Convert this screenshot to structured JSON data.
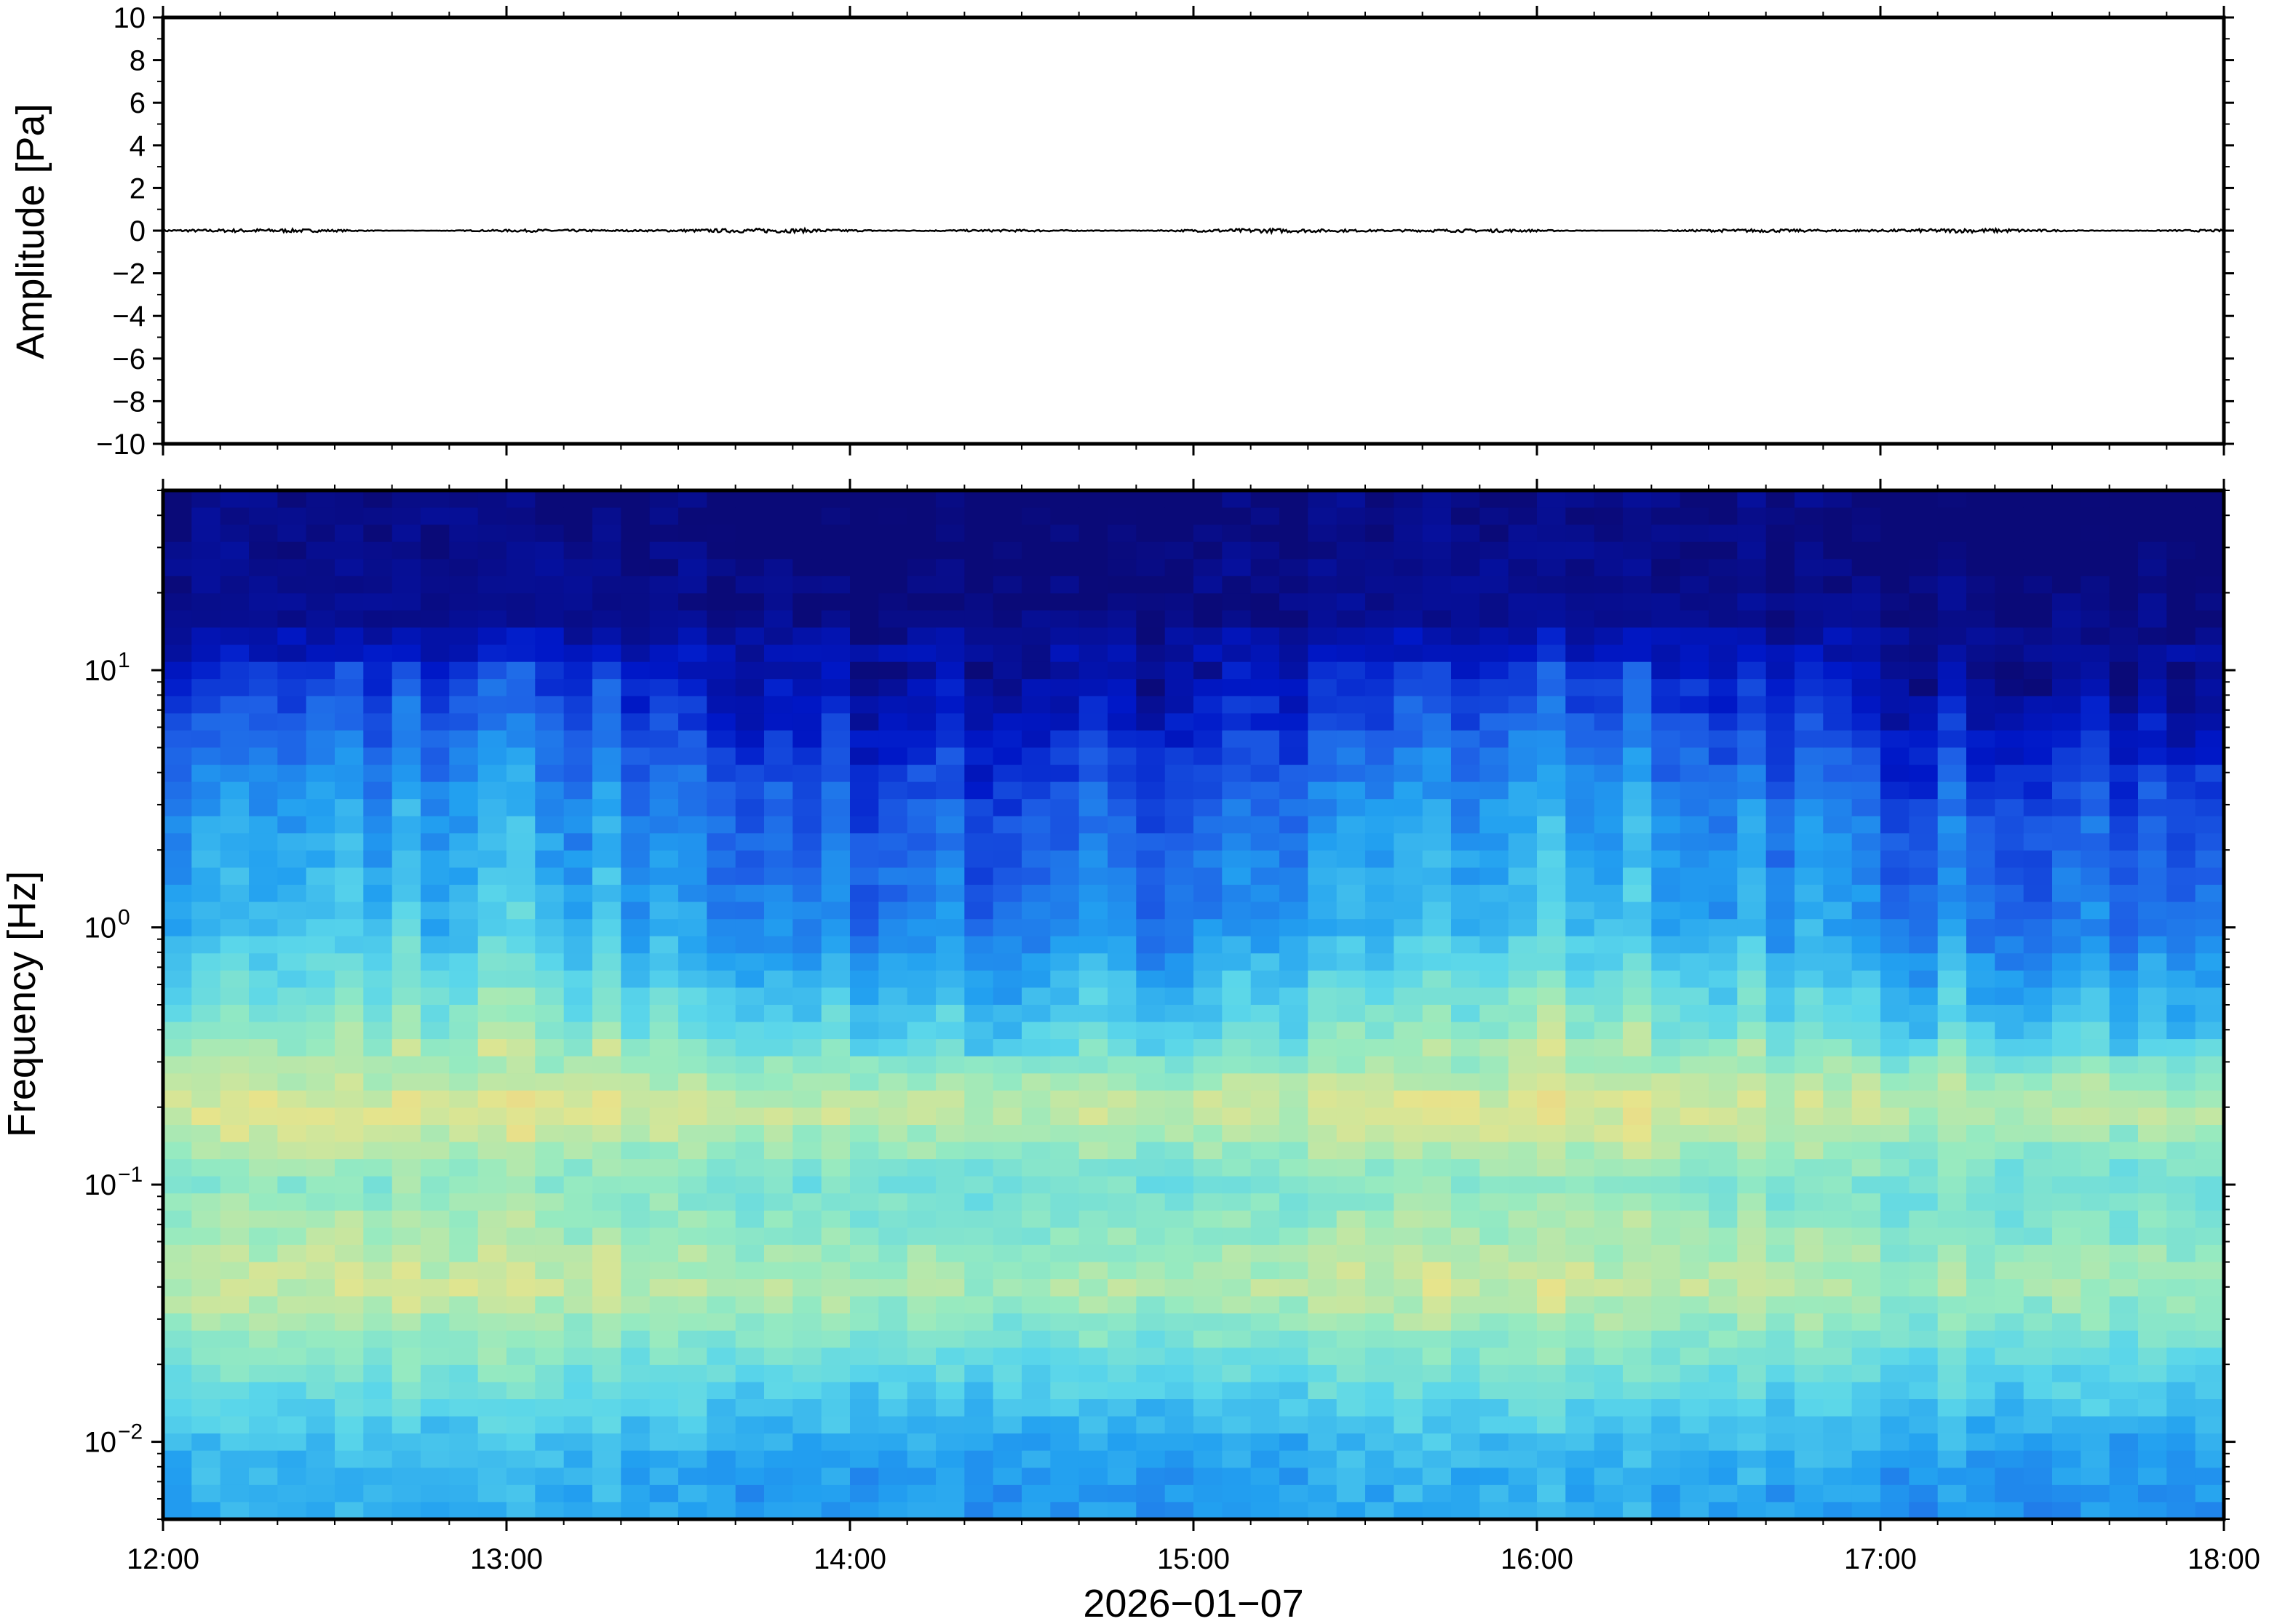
{
  "chart_data": [
    {
      "type": "line",
      "panel": "waveform",
      "ylabel": "Amplitude [Pa]",
      "ylim": [
        -10,
        10
      ],
      "yticks": [
        "10",
        "8",
        "6",
        "4",
        "2",
        "0",
        "−2",
        "−4",
        "−6",
        "−8",
        "−10"
      ],
      "ytick_values": [
        10,
        8,
        6,
        4,
        2,
        0,
        -2,
        -4,
        -6,
        -8,
        -10
      ],
      "series": [
        {
          "values": [
            0.03,
            -0.02,
            0.05,
            -0.04,
            0.02,
            -0.01,
            0.04,
            -0.03,
            0.06,
            -0.05,
            0.02,
            0.0
          ]
        }
      ],
      "trace_color": "#000000"
    },
    {
      "type": "heatmap",
      "panel": "spectrogram",
      "ylabel": "Frequency [Hz]",
      "yscale": "log",
      "ylim": [
        0.005,
        50
      ],
      "yticks": [
        {
          "base": "10",
          "exp": "1",
          "value": 10
        },
        {
          "base": "10",
          "exp": "0",
          "value": 1
        },
        {
          "base": "10",
          "exp": "−1",
          "value": 0.1
        },
        {
          "base": "10",
          "exp": "−2",
          "value": 0.01
        }
      ],
      "x": [
        "12:00",
        "13:00",
        "14:00",
        "15:00",
        "16:00",
        "17:00",
        "18:00"
      ],
      "xlabel": "2026−01−07",
      "colormap": [
        "#0a0a78",
        "#0018c8",
        "#1e60e6",
        "#22a0f0",
        "#5ad6ea",
        "#96eac0",
        "#e6e48c",
        "#f4c27c",
        "#f2a050"
      ],
      "energy_rows": [
        {
          "freq": 40,
          "level": 0.0
        },
        {
          "freq": 15,
          "level": 0.05
        },
        {
          "freq": 8,
          "level": 0.15
        },
        {
          "freq": 3,
          "level": 0.3
        },
        {
          "freq": 1,
          "level": 0.38
        },
        {
          "freq": 0.4,
          "level": 0.55
        },
        {
          "freq": 0.2,
          "level": 0.72
        },
        {
          "freq": 0.1,
          "level": 0.58
        },
        {
          "freq": 0.04,
          "level": 0.68
        },
        {
          "freq": 0.02,
          "level": 0.55
        },
        {
          "freq": 0.01,
          "level": 0.42
        },
        {
          "freq": 0.006,
          "level": 0.38
        }
      ]
    }
  ]
}
